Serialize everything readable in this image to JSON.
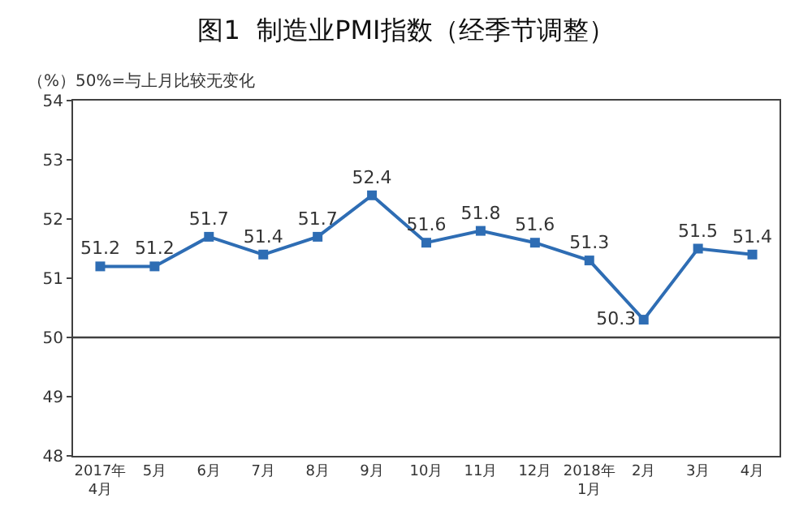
{
  "chart_data": {
    "type": "line",
    "title": "图1  制造业PMI指数（经季节调整）",
    "annotations": [
      "（%）50%=与上月比较无变化"
    ],
    "categories": [
      "2017年\n4月",
      "5月",
      "6月",
      "7月",
      "8月",
      "9月",
      "10月",
      "11月",
      "12月",
      "2018年\n1月",
      "2月",
      "3月",
      "4月"
    ],
    "series": [
      {
        "color": "#2e6db4",
        "values": [
          51.2,
          51.2,
          51.7,
          51.4,
          51.7,
          52.4,
          51.6,
          51.8,
          51.6,
          51.3,
          50.3,
          51.5,
          51.4
        ]
      }
    ],
    "ylim": [
      48,
      54
    ],
    "yticks": [
      48,
      49,
      50,
      51,
      52,
      53,
      54
    ],
    "ref_lines": [
      {
        "axis": "y",
        "value": 50,
        "label": null,
        "color": "#404040"
      }
    ],
    "data_labels": true,
    "marker": "square",
    "line_style": "solid"
  }
}
